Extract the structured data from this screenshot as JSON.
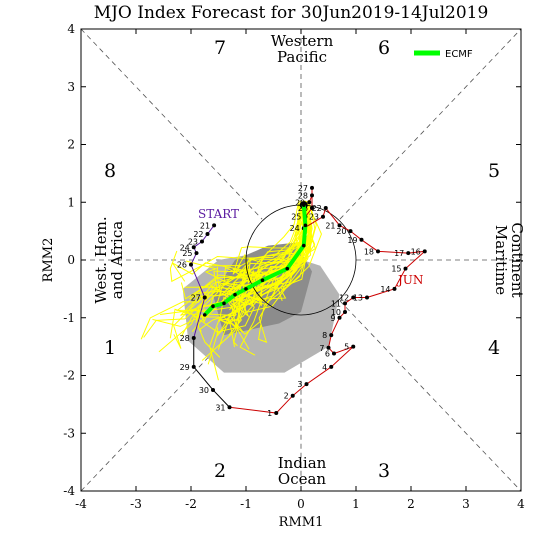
{
  "chart_data": {
    "type": "line",
    "title": "MJO Index Forecast for 30Jun2019-14Jul2019",
    "xlabel": "RMM1",
    "ylabel": "RMM2",
    "xlim": [
      -4,
      4
    ],
    "ylim": [
      -4,
      4
    ],
    "x_ticks": [
      "-4",
      "-3",
      "-2",
      "-1",
      "0",
      "1",
      "2",
      "3",
      "4"
    ],
    "y_ticks": [
      "-4",
      "-3",
      "-2",
      "-1",
      "0",
      "1",
      "2",
      "3",
      "4"
    ],
    "grid": false,
    "legend_position": "top-right",
    "phase_labels": [
      "1",
      "2",
      "3",
      "4",
      "5",
      "6",
      "7",
      "8"
    ],
    "region_labels": {
      "top": [
        "Western",
        "Pacific"
      ],
      "bottom": [
        "Indian",
        "Ocean"
      ],
      "left": [
        "West. Hem.",
        "and Africa"
      ],
      "right": [
        "Maritime",
        "Continent"
      ]
    },
    "annotations": {
      "start": "START",
      "month": "JUN"
    },
    "observed_track": {
      "name": "",
      "color": "#cc0000",
      "points": [
        {
          "day": "21",
          "x": -1.58,
          "y": 0.6
        },
        {
          "day": "22",
          "x": -1.7,
          "y": 0.45
        },
        {
          "day": "23",
          "x": -1.8,
          "y": 0.32
        },
        {
          "day": "24",
          "x": -1.95,
          "y": 0.22
        },
        {
          "day": "25",
          "x": -1.9,
          "y": 0.12
        },
        {
          "day": "26",
          "x": -2.0,
          "y": -0.08
        },
        {
          "day": "27",
          "x": -1.75,
          "y": -0.65
        },
        {
          "day": "28",
          "x": -1.95,
          "y": -1.35
        },
        {
          "day": "29",
          "x": -1.95,
          "y": -1.85
        },
        {
          "day": "30",
          "x": -1.6,
          "y": -2.25
        },
        {
          "day": "31",
          "x": -1.3,
          "y": -2.55
        },
        {
          "day": "1",
          "x": -0.45,
          "y": -2.65
        },
        {
          "day": "2",
          "x": -0.15,
          "y": -2.35
        },
        {
          "day": "3",
          "x": 0.1,
          "y": -2.15
        },
        {
          "day": "4",
          "x": 0.55,
          "y": -1.85
        },
        {
          "day": "5",
          "x": 0.95,
          "y": -1.5
        },
        {
          "day": "6",
          "x": 0.6,
          "y": -1.62
        },
        {
          "day": "7",
          "x": 0.5,
          "y": -1.52
        },
        {
          "day": "8",
          "x": 0.55,
          "y": -1.3
        },
        {
          "day": "9",
          "x": 0.7,
          "y": -1.0
        },
        {
          "day": "10",
          "x": 0.8,
          "y": -0.9
        },
        {
          "day": "11",
          "x": 0.8,
          "y": -0.75
        },
        {
          "day": "12",
          "x": 0.95,
          "y": -0.65
        },
        {
          "day": "13",
          "x": 1.2,
          "y": -0.65
        },
        {
          "day": "14",
          "x": 1.7,
          "y": -0.5
        },
        {
          "day": "15",
          "x": 1.9,
          "y": -0.15
        },
        {
          "day": "16",
          "x": 2.25,
          "y": 0.15
        },
        {
          "day": "17",
          "x": 1.95,
          "y": 0.12
        },
        {
          "day": "18",
          "x": 1.4,
          "y": 0.15
        },
        {
          "day": "19",
          "x": 1.1,
          "y": 0.35
        },
        {
          "day": "20",
          "x": 0.9,
          "y": 0.5
        },
        {
          "day": "21",
          "x": 0.7,
          "y": 0.6
        },
        {
          "day": "22",
          "x": 0.45,
          "y": 0.9
        },
        {
          "day": "23",
          "x": 0.4,
          "y": 0.75
        },
        {
          "day": "24",
          "x": 0.05,
          "y": 0.55
        },
        {
          "day": "25",
          "x": 0.08,
          "y": 0.75
        },
        {
          "day": "26",
          "x": 0.2,
          "y": 0.9
        },
        {
          "day": "27",
          "x": 0.2,
          "y": 1.25
        },
        {
          "day": "28",
          "x": 0.2,
          "y": 1.12
        },
        {
          "day": "29",
          "x": 0.15,
          "y": 1.0
        }
      ]
    },
    "ecmf_mean": {
      "name": "ECMF",
      "color": "#00ff00",
      "points": [
        [
          0.05,
          0.95
        ],
        [
          0.08,
          0.6
        ],
        [
          0.05,
          0.25
        ],
        [
          -0.25,
          -0.15
        ],
        [
          -0.7,
          -0.35
        ],
        [
          -1.0,
          -0.5
        ],
        [
          -1.2,
          -0.6
        ],
        [
          -1.4,
          -0.75
        ],
        [
          -1.6,
          -0.8
        ],
        [
          -1.75,
          -0.95
        ]
      ]
    },
    "ensemble": {
      "name": "",
      "color": "#ffff00",
      "member_count": 50
    },
    "spread_shading": {
      "dark": [
        [
          -0.4,
          -1.1
        ],
        [
          -1.4,
          -1.3
        ],
        [
          -1.6,
          -0.6
        ],
        [
          -1.2,
          0.0
        ],
        [
          -0.6,
          0.25
        ],
        [
          -0.1,
          0.3
        ],
        [
          0.2,
          -0.2
        ],
        [
          0.0,
          -0.9
        ]
      ],
      "light": [
        [
          -1.4,
          -1.95
        ],
        [
          -2.05,
          -1.4
        ],
        [
          -2.15,
          -0.5
        ],
        [
          -1.5,
          0.0
        ],
        [
          -0.9,
          0.1
        ],
        [
          -0.3,
          0.1
        ],
        [
          0.35,
          -0.1
        ],
        [
          0.7,
          -0.6
        ],
        [
          0.5,
          -1.5
        ],
        [
          -0.3,
          -1.95
        ]
      ]
    }
  }
}
